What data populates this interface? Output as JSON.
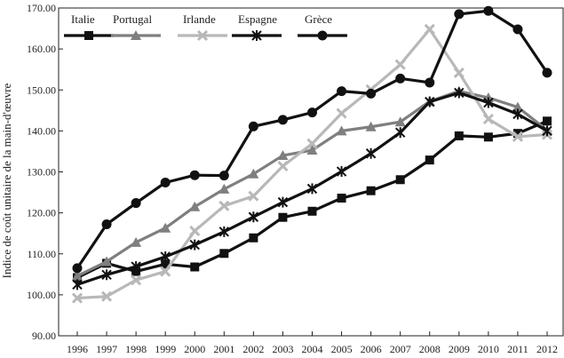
{
  "chart_data": {
    "type": "line",
    "title": "",
    "xlabel": "",
    "ylabel": "Indice de coût unitaire de la main-d'œuvre",
    "ylim": [
      90,
      170
    ],
    "yticks": [
      "90.00",
      "100.00",
      "110.00",
      "120.00",
      "130.00",
      "140.00",
      "150.00",
      "160.00",
      "170.00"
    ],
    "categories": [
      "1996",
      "1997",
      "1998",
      "1999",
      "2000",
      "2001",
      "2002",
      "2003",
      "2004",
      "2005",
      "2006",
      "2007",
      "2008",
      "2009",
      "2010",
      "2011",
      "2012"
    ],
    "grid": false,
    "legend_position": "top-left",
    "series": [
      {
        "name": "Italie",
        "color": "#111111",
        "marker": "square",
        "values": [
          104.2,
          107.7,
          105.7,
          107.5,
          106.8,
          110.1,
          113.9,
          118.9,
          120.4,
          123.6,
          125.4,
          128.1,
          132.9,
          138.8,
          138.5,
          139.4,
          142.4
        ]
      },
      {
        "name": "Portugal",
        "color": "#7f7f7f",
        "marker": "triangle",
        "values": [
          104.6,
          108.1,
          112.8,
          116.3,
          121.5,
          125.8,
          129.5,
          134.0,
          135.3,
          140.0,
          141.0,
          142.2,
          147.2,
          149.7,
          148.1,
          145.8,
          140.2
        ]
      },
      {
        "name": "Irlande",
        "color": "#b8b8b8",
        "marker": "x",
        "values": [
          99.2,
          99.6,
          103.6,
          105.7,
          115.6,
          121.7,
          124.1,
          131.4,
          136.9,
          144.3,
          150.1,
          156.2,
          164.8,
          154.2,
          142.9,
          138.6,
          139.1
        ]
      },
      {
        "name": "Espagne",
        "color": "#111111",
        "marker": "star",
        "values": [
          102.5,
          104.9,
          106.9,
          109.3,
          112.2,
          115.4,
          119.0,
          122.6,
          125.9,
          130.1,
          134.5,
          139.6,
          147.1,
          149.3,
          146.9,
          144.1,
          140.0
        ]
      },
      {
        "name": "Grèce",
        "color": "#111111",
        "marker": "circle",
        "values": [
          106.5,
          117.2,
          122.4,
          127.4,
          129.2,
          129.1,
          141.1,
          142.7,
          144.5,
          149.7,
          149.1,
          152.8,
          151.8,
          168.5,
          169.3,
          164.8,
          154.2
        ]
      }
    ]
  }
}
